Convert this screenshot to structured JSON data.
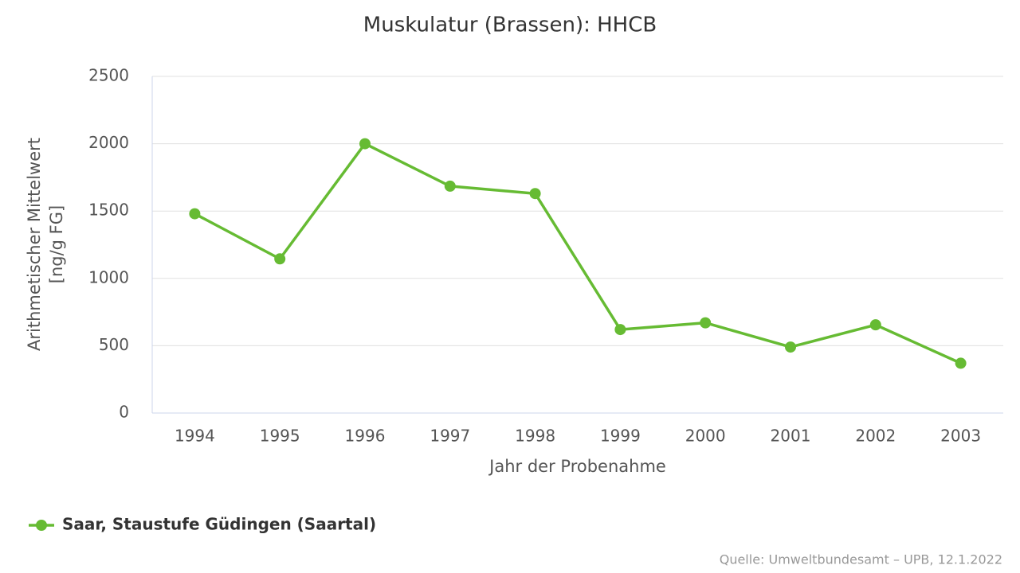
{
  "chart_data": {
    "type": "line",
    "title": "Muskulatur (Brassen): HHCB",
    "x_label": "Jahr der Probenahme",
    "y_label": [
      "Arithmetischer Mittelwert",
      "[ng/g FG]"
    ],
    "categories": [
      "1994",
      "1995",
      "1996",
      "1997",
      "1998",
      "1999",
      "2000",
      "2001",
      "2002",
      "2003"
    ],
    "series": [
      {
        "name": "Saar, Staustufe Güdingen (Saartal)",
        "color": "#66bb33",
        "values": [
          1480,
          1145,
          2000,
          1685,
          1630,
          620,
          670,
          490,
          655,
          370
        ]
      }
    ],
    "ylim": [
      0,
      2500
    ],
    "yticks": [
      0,
      500,
      1000,
      1500,
      2000,
      2500
    ],
    "grid": true,
    "legend": "bottom-left",
    "source": "Quelle: Umweltbundesamt – UPB, 12.1.2022"
  }
}
